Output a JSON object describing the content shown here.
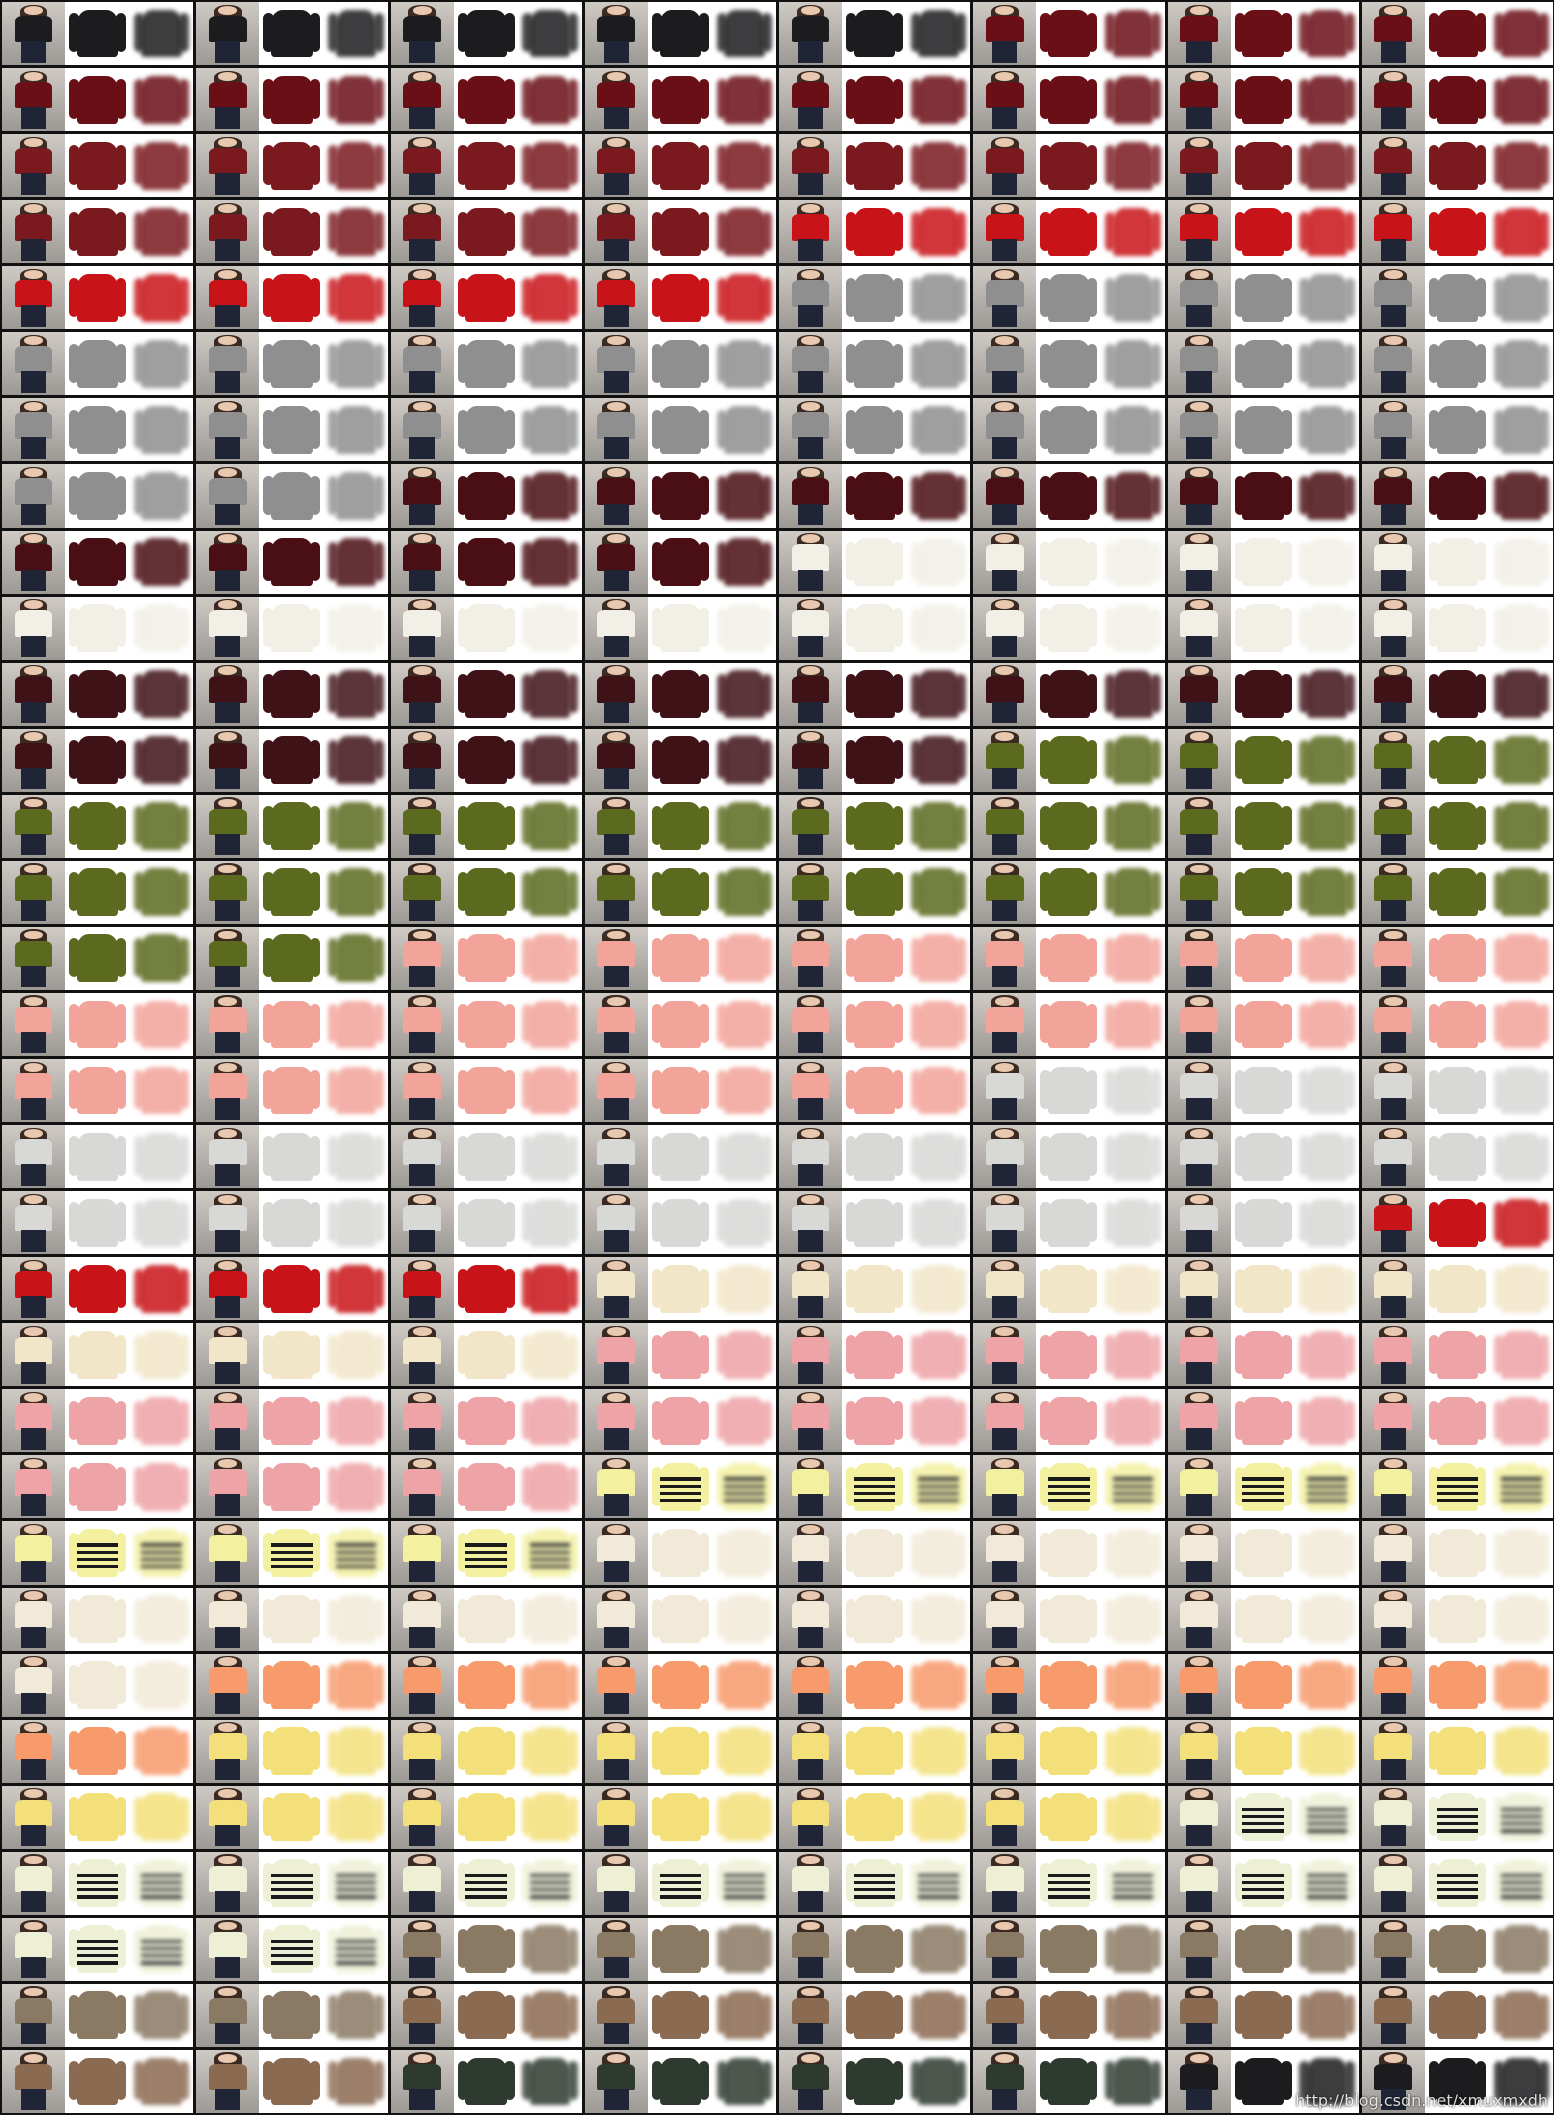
{
  "grid": {
    "columns": 8,
    "rows": 32
  },
  "palette": [
    "#1c1c1e",
    "#6b0f16",
    "#7a1a1f",
    "#c81418",
    "#8f8f8f",
    "#4a0f14",
    "#f1efe6",
    "#3f1218",
    "#5b6a1f",
    "#f2a39a",
    "#d8d8d6",
    "#f1e6c8",
    "#eea3a6",
    "#f3f0a0",
    "#f2ead8",
    "#f79a6c",
    "#f3e07a",
    "#eef0d6",
    "#8a7a63",
    "#8b6a52",
    "#2e3a30"
  ],
  "cell_colors": [
    [
      0,
      0,
      0,
      0,
      0,
      1,
      1,
      1
    ],
    [
      1,
      1,
      1,
      1,
      1,
      1,
      1,
      1
    ],
    [
      2,
      2,
      2,
      2,
      2,
      2,
      2,
      2
    ],
    [
      2,
      2,
      2,
      2,
      3,
      3,
      3,
      3
    ],
    [
      3,
      3,
      3,
      3,
      4,
      4,
      4,
      4
    ],
    [
      4,
      4,
      4,
      4,
      4,
      4,
      4,
      4
    ],
    [
      4,
      4,
      4,
      4,
      4,
      4,
      4,
      4
    ],
    [
      4,
      4,
      5,
      5,
      5,
      5,
      5,
      5
    ],
    [
      5,
      5,
      5,
      5,
      6,
      6,
      6,
      6
    ],
    [
      6,
      6,
      6,
      6,
      6,
      6,
      6,
      6
    ],
    [
      7,
      7,
      7,
      7,
      7,
      7,
      7,
      7
    ],
    [
      7,
      7,
      7,
      7,
      7,
      8,
      8,
      8
    ],
    [
      8,
      8,
      8,
      8,
      8,
      8,
      8,
      8
    ],
    [
      8,
      8,
      8,
      8,
      8,
      8,
      8,
      8
    ],
    [
      8,
      8,
      9,
      9,
      9,
      9,
      9,
      9
    ],
    [
      9,
      9,
      9,
      9,
      9,
      9,
      9,
      9
    ],
    [
      9,
      9,
      9,
      9,
      9,
      10,
      10,
      10
    ],
    [
      10,
      10,
      10,
      10,
      10,
      10,
      10,
      10
    ],
    [
      10,
      10,
      10,
      10,
      10,
      10,
      10,
      3
    ],
    [
      3,
      3,
      3,
      11,
      11,
      11,
      11,
      11
    ],
    [
      11,
      11,
      11,
      12,
      12,
      12,
      12,
      12
    ],
    [
      12,
      12,
      12,
      12,
      12,
      12,
      12,
      12
    ],
    [
      12,
      12,
      12,
      13,
      13,
      13,
      13,
      13
    ],
    [
      13,
      13,
      13,
      14,
      14,
      14,
      14,
      14
    ],
    [
      14,
      14,
      14,
      14,
      14,
      14,
      14,
      14
    ],
    [
      14,
      15,
      15,
      15,
      15,
      15,
      15,
      15
    ],
    [
      15,
      16,
      16,
      16,
      16,
      16,
      16,
      16
    ],
    [
      16,
      16,
      16,
      16,
      16,
      16,
      17,
      17
    ],
    [
      17,
      17,
      17,
      17,
      17,
      17,
      17,
      17
    ],
    [
      17,
      17,
      18,
      18,
      18,
      18,
      18,
      18
    ],
    [
      18,
      18,
      19,
      19,
      19,
      19,
      19,
      19
    ],
    [
      19,
      19,
      20,
      20,
      20,
      20,
      0,
      0
    ]
  ],
  "striped_colors": [
    13,
    17
  ],
  "watermark": "http://blog.csdn.net/xmuxmxdh"
}
